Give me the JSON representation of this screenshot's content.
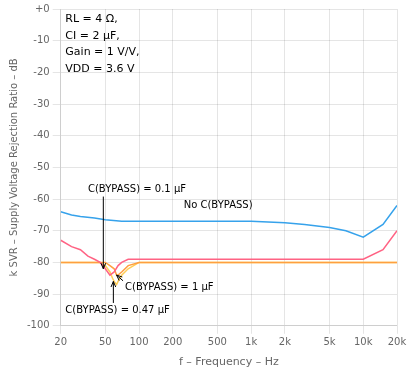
{
  "chart_data": {
    "type": "line",
    "log": "x",
    "grid": true,
    "xlabel": "f – Frequency – Hz",
    "ylabel": "k SVR – Supply Voltage Rejection Ratio – dB",
    "xlim": [
      20,
      20000
    ],
    "ylim": [
      -100,
      0
    ],
    "xticks": [
      20,
      50,
      100,
      200,
      500,
      {
        "value": 1000,
        "label": "1k"
      },
      {
        "value": 2000,
        "label": "2k"
      },
      {
        "value": 5000,
        "label": "5k"
      },
      {
        "value": 10000,
        "label": "10k"
      },
      {
        "value": 20000,
        "label": "20k"
      }
    ],
    "yticks": [
      {
        "value": 0,
        "label": "+0"
      },
      -10,
      -20,
      -30,
      -40,
      -50,
      -60,
      -70,
      -80,
      -90,
      -100
    ],
    "series": [
      {
        "x": [
          20,
          25,
          30,
          40,
          50,
          70,
          100,
          150,
          200,
          300,
          500,
          700,
          1000,
          2000,
          3000,
          5000,
          7000,
          10000,
          15000,
          20000
        ],
        "values": [
          -64,
          -65,
          -65.5,
          -66,
          -66.5,
          -67,
          -67,
          -67,
          -67,
          -67,
          -67,
          -67,
          -67,
          -67.5,
          -68,
          -69,
          -70,
          -72,
          -68,
          -62
        ]
      },
      {
        "x": [
          20,
          25,
          30,
          35,
          40,
          45,
          50,
          55,
          60,
          65,
          70,
          80,
          100,
          150,
          200,
          300,
          500,
          700,
          1000,
          2000,
          5000,
          10000,
          15000,
          20000
        ],
        "values": [
          -73,
          -75,
          -76,
          -78,
          -79,
          -80,
          -82,
          -84,
          -83,
          -81,
          -80,
          -79,
          -79,
          -79,
          -79,
          -79,
          -79,
          -79,
          -79,
          -79,
          -79,
          -79,
          -76,
          -70
        ]
      },
      {
        "x": [
          20,
          25,
          30,
          35,
          40,
          45,
          50,
          55,
          60,
          63,
          65,
          70,
          80,
          100,
          200,
          500,
          1000,
          2000,
          5000,
          10000,
          20000
        ],
        "values": [
          -80,
          -80,
          -80,
          -80,
          -80,
          -80,
          -80,
          -81,
          -82,
          -84,
          -84,
          -83,
          -81,
          -80,
          -80,
          -80,
          -80,
          -80,
          -80,
          -80,
          -80
        ]
      },
      {
        "x": [
          20,
          25,
          30,
          35,
          40,
          45,
          50,
          55,
          58,
          60,
          63,
          65,
          70,
          80,
          100,
          200,
          500,
          1000,
          2000,
          5000,
          10000,
          20000
        ],
        "values": [
          -80,
          -80,
          -80,
          -80,
          -80,
          -80,
          -81,
          -83,
          -85,
          -86,
          -87,
          -86,
          -84,
          -82,
          -80,
          -80,
          -80,
          -80,
          -80,
          -80,
          -80,
          -80
        ]
      }
    ],
    "annotations": [
      {
        "text": "RL = 4 Ω,\nCI = 2 μF,\nGain = 1 V/V,\nVDD = 3.6 V",
        "x": 22,
        "y": -1.5
      },
      {
        "text": "No C(BYPASS)",
        "x": 250,
        "y": -62
      },
      {
        "text": "C(BYPASS) = 0.1 μF",
        "x": 35,
        "y": -57,
        "arrow_x": 48,
        "arrow_y": -82
      },
      {
        "text": "C(BYPASS) = 1 μF",
        "x": 75,
        "y": -88,
        "arrow_x": 63,
        "arrow_y": -84
      },
      {
        "text": "C(BYPASS) = 0.47 μF",
        "x": 22,
        "y": -95,
        "arrow_x": 59,
        "arrow_y": -86
      }
    ]
  }
}
